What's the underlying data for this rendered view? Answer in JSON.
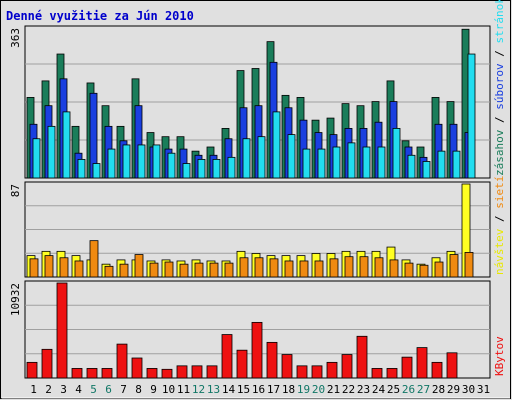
{
  "title": "Denné využitie za Jún 2010",
  "colors": {
    "background": "#e0e0e0",
    "title": "#0000cc",
    "hits_green": "#1a7d5a",
    "files_blue": "#1a3fe0",
    "pages_cyan": "#22ddf0",
    "visits_yellow": "#ffff22",
    "sites_orange": "#f08a10",
    "kbytes_red": "#ee1111",
    "weekend_label": "#117766",
    "weekday_label": "#000000"
  },
  "chart_data": [
    {
      "type": "bar",
      "panel": "top",
      "ymax_label": "363",
      "ylim": [
        0,
        363
      ],
      "legend_right": [
        {
          "text": "zásahov",
          "color": "#1a7d5a"
        },
        {
          "text": " / ",
          "color": "#000000"
        },
        {
          "text": "súborov",
          "color": "#1a3fe0"
        },
        {
          "text": " / ",
          "color": "#000000"
        },
        {
          "text": "stránok",
          "color": "#22ddf0"
        }
      ],
      "series": [
        {
          "name": "zásahov",
          "color": "#1a7d5a",
          "values": [
            195,
            235,
            300,
            125,
            230,
            175,
            125,
            240,
            110,
            100,
            100,
            65,
            75,
            120,
            260,
            265,
            330,
            200,
            195,
            140,
            145,
            180,
            175,
            185,
            235,
            90,
            75,
            195,
            185,
            360
          ]
        },
        {
          "name": "súborov",
          "color": "#1a3fe0",
          "values": [
            130,
            175,
            240,
            60,
            205,
            125,
            90,
            175,
            75,
            70,
            70,
            55,
            55,
            95,
            170,
            175,
            280,
            170,
            140,
            110,
            105,
            120,
            120,
            135,
            185,
            75,
            50,
            130,
            130,
            110
          ]
        },
        {
          "name": "stránok",
          "color": "#22ddf0",
          "values": [
            95,
            125,
            160,
            45,
            35,
            70,
            80,
            80,
            80,
            60,
            35,
            45,
            45,
            50,
            95,
            100,
            160,
            105,
            70,
            70,
            75,
            85,
            75,
            75,
            120,
            55,
            40,
            65,
            65,
            300
          ]
        }
      ]
    },
    {
      "type": "bar",
      "panel": "middle",
      "ymax_label": "87",
      "ylim": [
        0,
        87
      ],
      "legend_right": [
        {
          "text": "návštev",
          "color": "#e8e800"
        },
        {
          "text": " / ",
          "color": "#000000"
        },
        {
          "text": "sietí",
          "color": "#f08a10"
        }
      ],
      "series": [
        {
          "name": "návštev",
          "color": "#ffff22",
          "values": [
            20,
            24,
            24,
            20,
            16,
            12,
            16,
            16,
            15,
            16,
            15,
            16,
            15,
            15,
            24,
            22,
            20,
            20,
            20,
            22,
            22,
            24,
            24,
            24,
            28,
            16,
            12,
            18,
            24,
            87
          ]
        },
        {
          "name": "sietí",
          "color": "#f08a10",
          "values": [
            17,
            20,
            18,
            15,
            34,
            10,
            12,
            21,
            13,
            14,
            12,
            13,
            13,
            13,
            18,
            18,
            17,
            15,
            15,
            15,
            17,
            19,
            19,
            18,
            16,
            13,
            11,
            14,
            21,
            23
          ]
        }
      ]
    },
    {
      "type": "bar",
      "panel": "bottom",
      "ymax_label": "10932",
      "ylim": [
        0,
        10932
      ],
      "legend_right": [
        {
          "text": "KBytov",
          "color": "#ee1111"
        }
      ],
      "series": [
        {
          "name": "KBytov",
          "color": "#ee1111",
          "values": [
            1800,
            3300,
            10932,
            1100,
            1100,
            1100,
            3900,
            2300,
            1100,
            1000,
            1400,
            1400,
            1400,
            5000,
            3200,
            6400,
            4100,
            2700,
            1400,
            1400,
            1800,
            2700,
            4800,
            1100,
            1100,
            2400,
            3500,
            1800,
            2900,
            0
          ]
        }
      ]
    }
  ],
  "x_axis": {
    "days": [
      "1",
      "2",
      "3",
      "4",
      "5",
      "6",
      "7",
      "8",
      "9",
      "10",
      "11",
      "12",
      "13",
      "14",
      "15",
      "16",
      "17",
      "18",
      "19",
      "20",
      "21",
      "22",
      "23",
      "24",
      "25",
      "26",
      "27",
      "28",
      "29",
      "30",
      "31"
    ],
    "weekend_days": [
      "5",
      "6",
      "12",
      "13",
      "19",
      "20",
      "26",
      "27"
    ]
  }
}
